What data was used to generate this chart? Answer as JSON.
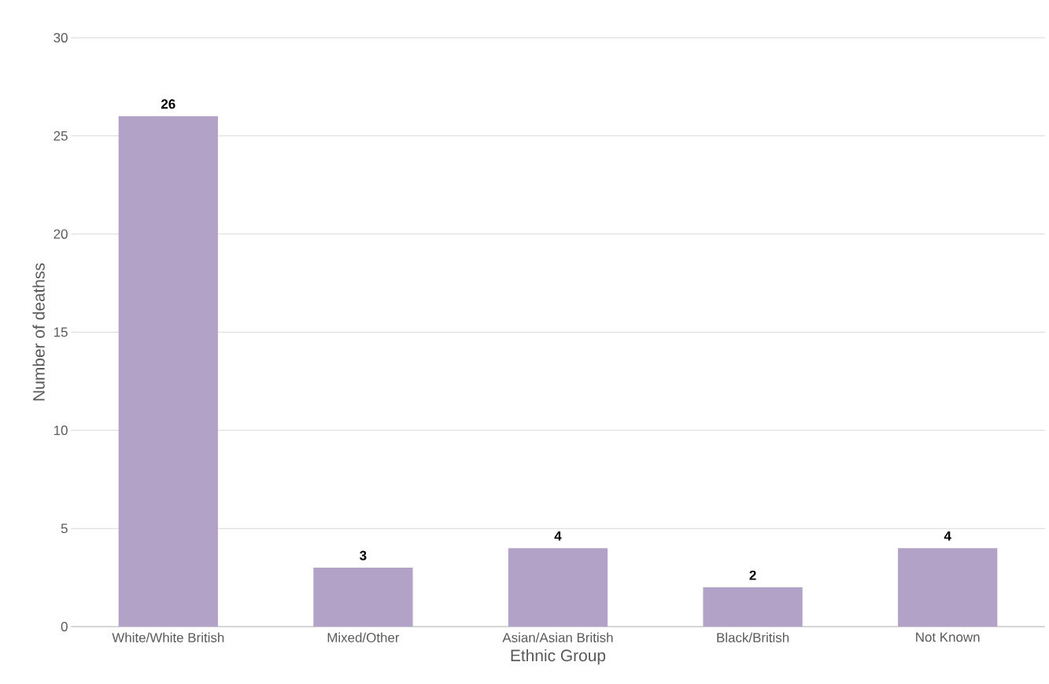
{
  "chart_data": {
    "type": "bar",
    "xlabel": "Ethnic Group",
    "ylabel": "Number of deathss",
    "categories": [
      "White/White British",
      "Mixed/Other",
      "Asian/Asian British",
      "Black/British",
      "Not Known"
    ],
    "values": [
      26,
      3,
      4,
      2,
      4
    ],
    "color": "#b3a2c7",
    "ylim": [
      0,
      30
    ],
    "yticks": [
      0,
      5,
      10,
      15,
      20,
      25,
      30
    ],
    "grid": "y",
    "data_labels": true
  }
}
